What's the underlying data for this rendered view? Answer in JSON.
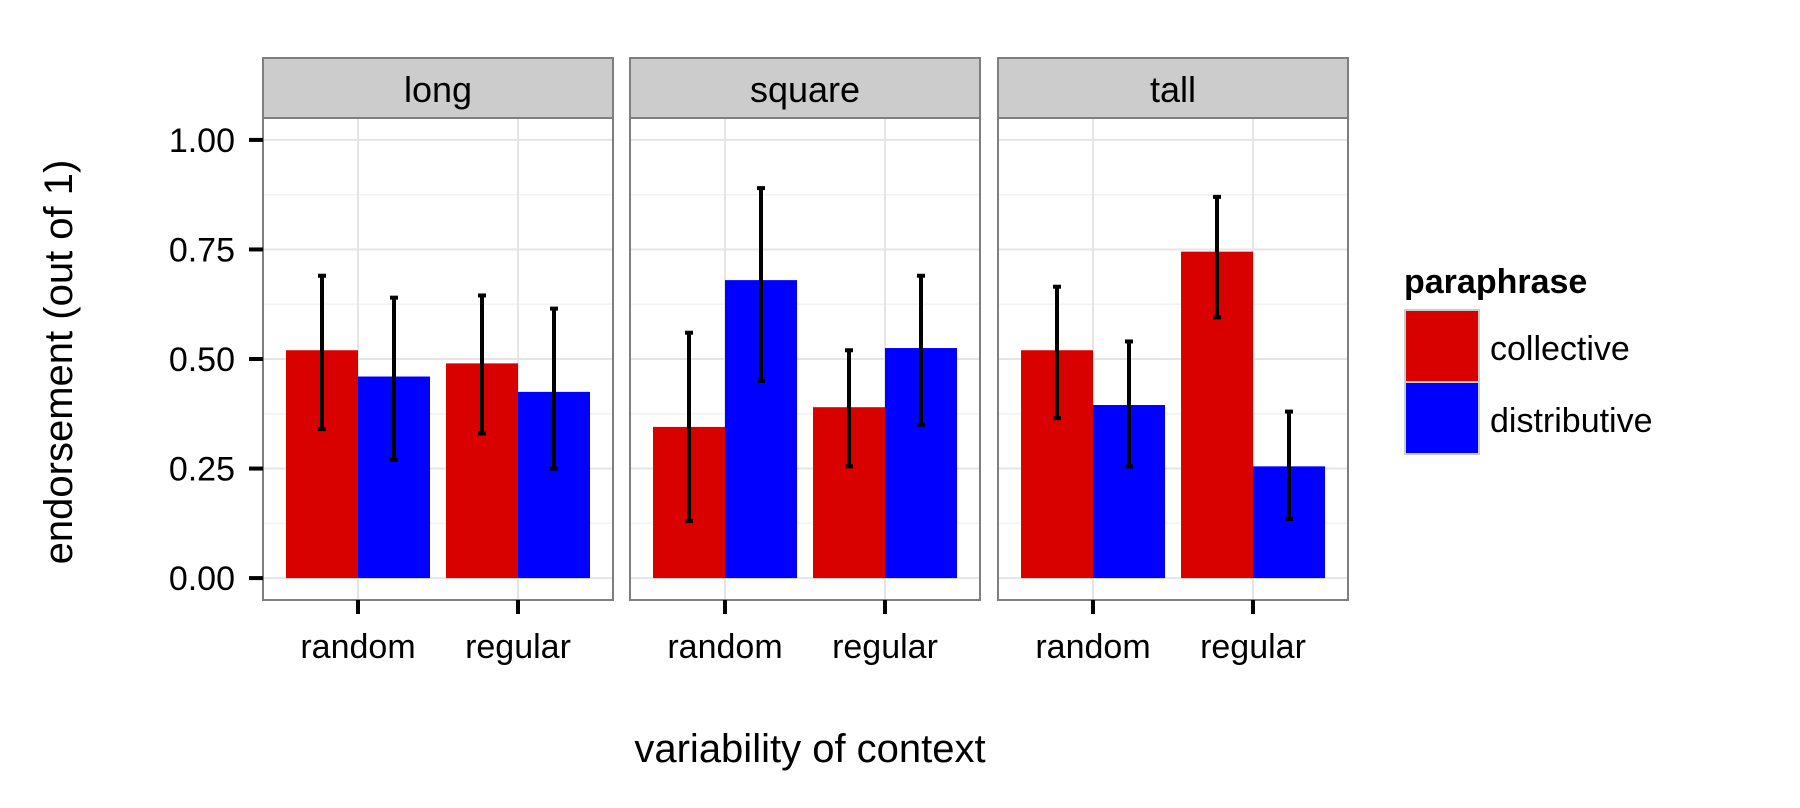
{
  "chart_data": {
    "type": "bar",
    "facets": [
      "long",
      "square",
      "tall"
    ],
    "categories": [
      "random",
      "regular"
    ],
    "series": [
      {
        "name": "collective",
        "color": "#d90000"
      },
      {
        "name": "distributive",
        "color": "#0000ff"
      }
    ],
    "values": {
      "long": {
        "collective": {
          "random": 0.52,
          "regular": 0.49
        },
        "distributive": {
          "random": 0.46,
          "regular": 0.425
        }
      },
      "square": {
        "collective": {
          "random": 0.345,
          "regular": 0.39
        },
        "distributive": {
          "random": 0.68,
          "regular": 0.525
        }
      },
      "tall": {
        "collective": {
          "random": 0.52,
          "regular": 0.745
        },
        "distributive": {
          "random": 0.395,
          "regular": 0.255
        }
      }
    },
    "error_bars": {
      "long": {
        "collective": {
          "random": [
            0.34,
            0.69
          ],
          "regular": [
            0.33,
            0.645
          ]
        },
        "distributive": {
          "random": [
            0.27,
            0.64
          ],
          "regular": [
            0.25,
            0.615
          ]
        }
      },
      "square": {
        "collective": {
          "random": [
            0.13,
            0.56
          ],
          "regular": [
            0.255,
            0.52
          ]
        },
        "distributive": {
          "random": [
            0.45,
            0.89
          ],
          "regular": [
            0.35,
            0.69
          ]
        }
      },
      "tall": {
        "collective": {
          "random": [
            0.365,
            0.665
          ],
          "regular": [
            0.595,
            0.87
          ]
        },
        "distributive": {
          "random": [
            0.255,
            0.54
          ],
          "regular": [
            0.135,
            0.38
          ]
        }
      }
    },
    "yticks": [
      0.0,
      0.25,
      0.5,
      0.75,
      1.0
    ],
    "ytick_labels": [
      "0.00",
      "0.25",
      "0.50",
      "0.75",
      "1.00"
    ],
    "ylim": [
      -0.05,
      1.05
    ],
    "xlabel": "variability of context",
    "ylabel": "endorsement (out of 1)",
    "legend_title": "paraphrase",
    "legend_position": "right",
    "grid": true
  }
}
